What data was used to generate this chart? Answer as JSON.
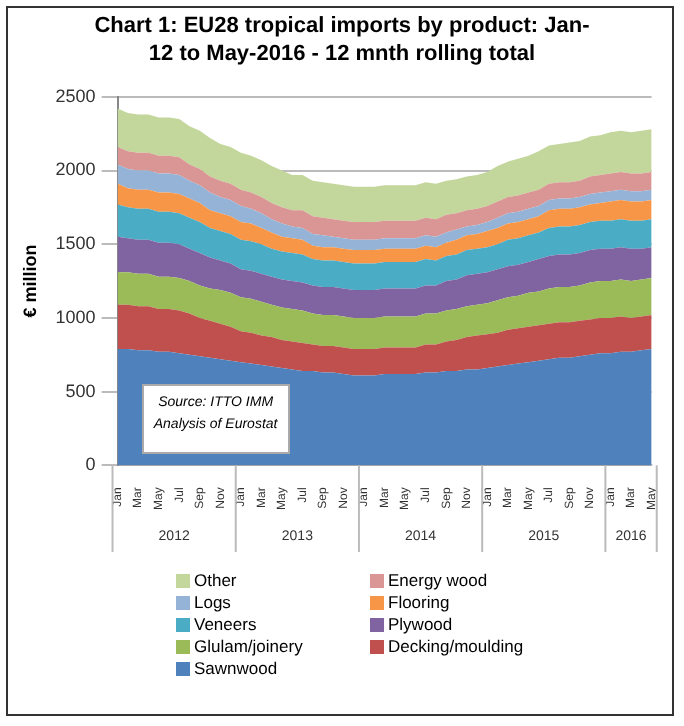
{
  "chart_data": {
    "type": "area",
    "stacked": true,
    "title": "Chart 1: EU28 tropical imports by product: Jan-12 to May-2016 - 12 mnth rolling total",
    "ylabel": "€ million",
    "categories": [
      "Jan",
      null,
      "Mar",
      null,
      "May",
      null,
      "Jul",
      null,
      "Sep",
      null,
      "Nov",
      null,
      "Jan",
      null,
      "Mar",
      null,
      "May",
      null,
      "Jul",
      null,
      "Sep",
      null,
      "Nov",
      null,
      "Jan",
      null,
      "Mar",
      null,
      "May",
      null,
      "Jul",
      null,
      "Sep",
      null,
      "Nov",
      null,
      "Jan",
      null,
      "Mar",
      null,
      "May",
      null,
      "Jul",
      null,
      "Sep",
      null,
      "Nov",
      null,
      "Jan",
      null,
      "Mar",
      null,
      "May"
    ],
    "series": [
      {
        "name": "Sawnwood",
        "color": "#4f81bd",
        "values": [
          790,
          790,
          780,
          780,
          770,
          770,
          760,
          750,
          740,
          730,
          720,
          710,
          700,
          690,
          680,
          670,
          660,
          650,
          640,
          640,
          630,
          630,
          620,
          610,
          610,
          610,
          620,
          620,
          620,
          620,
          630,
          630,
          640,
          640,
          650,
          650,
          660,
          670,
          680,
          690,
          700,
          710,
          720,
          730,
          730,
          740,
          750,
          760,
          760,
          770,
          770,
          780,
          790
        ]
      },
      {
        "name": "Decking/moulding",
        "color": "#c0504d",
        "values": [
          300,
          300,
          300,
          300,
          290,
          290,
          290,
          280,
          260,
          250,
          240,
          230,
          210,
          210,
          200,
          200,
          190,
          190,
          190,
          180,
          180,
          180,
          180,
          180,
          180,
          180,
          180,
          180,
          180,
          180,
          190,
          190,
          200,
          210,
          220,
          230,
          230,
          230,
          240,
          240,
          240,
          240,
          240,
          240,
          240,
          240,
          240,
          240,
          240,
          240,
          230,
          230,
          230
        ]
      },
      {
        "name": "Glulam/joinery",
        "color": "#9bbb59",
        "values": [
          220,
          220,
          220,
          220,
          220,
          220,
          220,
          220,
          220,
          220,
          230,
          230,
          230,
          230,
          230,
          220,
          220,
          220,
          220,
          210,
          210,
          210,
          210,
          210,
          210,
          210,
          210,
          210,
          210,
          210,
          210,
          210,
          210,
          210,
          210,
          210,
          210,
          220,
          220,
          220,
          230,
          230,
          240,
          240,
          240,
          240,
          250,
          250,
          250,
          250,
          250,
          250,
          250
        ]
      },
      {
        "name": "Plywood",
        "color": "#8064a2",
        "values": [
          240,
          230,
          230,
          230,
          230,
          230,
          230,
          220,
          220,
          210,
          200,
          200,
          190,
          190,
          190,
          190,
          190,
          190,
          190,
          190,
          190,
          190,
          190,
          190,
          190,
          190,
          190,
          190,
          190,
          190,
          190,
          190,
          200,
          200,
          210,
          210,
          210,
          210,
          210,
          210,
          210,
          220,
          220,
          220,
          220,
          220,
          220,
          220,
          220,
          220,
          220,
          210,
          210
        ]
      },
      {
        "name": "Veneers",
        "color": "#4bacc6",
        "values": [
          220,
          210,
          210,
          210,
          210,
          210,
          210,
          210,
          210,
          200,
          200,
          200,
          200,
          200,
          200,
          190,
          190,
          190,
          190,
          180,
          180,
          180,
          180,
          180,
          180,
          180,
          180,
          180,
          180,
          180,
          180,
          170,
          170,
          170,
          170,
          170,
          170,
          170,
          180,
          180,
          180,
          180,
          190,
          190,
          190,
          190,
          190,
          190,
          190,
          190,
          190,
          190,
          190
        ]
      },
      {
        "name": "Flooring",
        "color": "#f79646",
        "values": [
          140,
          130,
          130,
          130,
          130,
          130,
          130,
          130,
          130,
          120,
          120,
          120,
          120,
          120,
          110,
          110,
          100,
          100,
          100,
          90,
          90,
          90,
          90,
          90,
          90,
          90,
          90,
          90,
          90,
          90,
          90,
          90,
          90,
          100,
          100,
          100,
          110,
          110,
          110,
          110,
          110,
          110,
          120,
          120,
          120,
          120,
          120,
          120,
          130,
          130,
          130,
          130,
          130
        ]
      },
      {
        "name": "Logs",
        "color": "#95b3d7",
        "values": [
          130,
          130,
          130,
          130,
          130,
          130,
          130,
          120,
          120,
          120,
          110,
          110,
          110,
          100,
          100,
          90,
          90,
          80,
          80,
          80,
          80,
          70,
          70,
          70,
          70,
          70,
          70,
          70,
          70,
          70,
          70,
          70,
          70,
          70,
          60,
          60,
          60,
          70,
          70,
          70,
          70,
          70,
          70,
          70,
          70,
          70,
          70,
          70,
          70,
          70,
          70,
          70,
          70
        ]
      },
      {
        "name": "Energy wood",
        "color": "#d99694",
        "values": [
          120,
          120,
          120,
          120,
          120,
          120,
          120,
          110,
          110,
          110,
          110,
          110,
          110,
          110,
          110,
          110,
          110,
          110,
          120,
          120,
          120,
          120,
          120,
          120,
          120,
          120,
          120,
          120,
          120,
          120,
          120,
          120,
          120,
          110,
          110,
          110,
          110,
          110,
          110,
          110,
          110,
          110,
          110,
          110,
          110,
          110,
          120,
          120,
          120,
          120,
          120,
          120,
          120
        ]
      },
      {
        "name": "Other",
        "color": "#c3d69b",
        "values": [
          260,
          260,
          260,
          260,
          260,
          260,
          260,
          260,
          260,
          260,
          250,
          250,
          250,
          250,
          250,
          250,
          250,
          240,
          240,
          240,
          240,
          240,
          240,
          240,
          240,
          240,
          240,
          240,
          240,
          240,
          240,
          240,
          230,
          230,
          230,
          230,
          230,
          240,
          240,
          250,
          250,
          260,
          260,
          260,
          270,
          270,
          270,
          270,
          280,
          280,
          280,
          290,
          290
        ]
      }
    ],
    "ylim": [
      0,
      2500
    ],
    "yticks": [
      0,
      500,
      1000,
      1500,
      2000,
      2500
    ],
    "grid": "y",
    "legend": "bottom",
    "annotations": [
      "Source: ITTO IMM Analysis of Eurostat",
      "2012",
      "2013",
      "2014",
      "2015",
      "2016"
    ]
  }
}
